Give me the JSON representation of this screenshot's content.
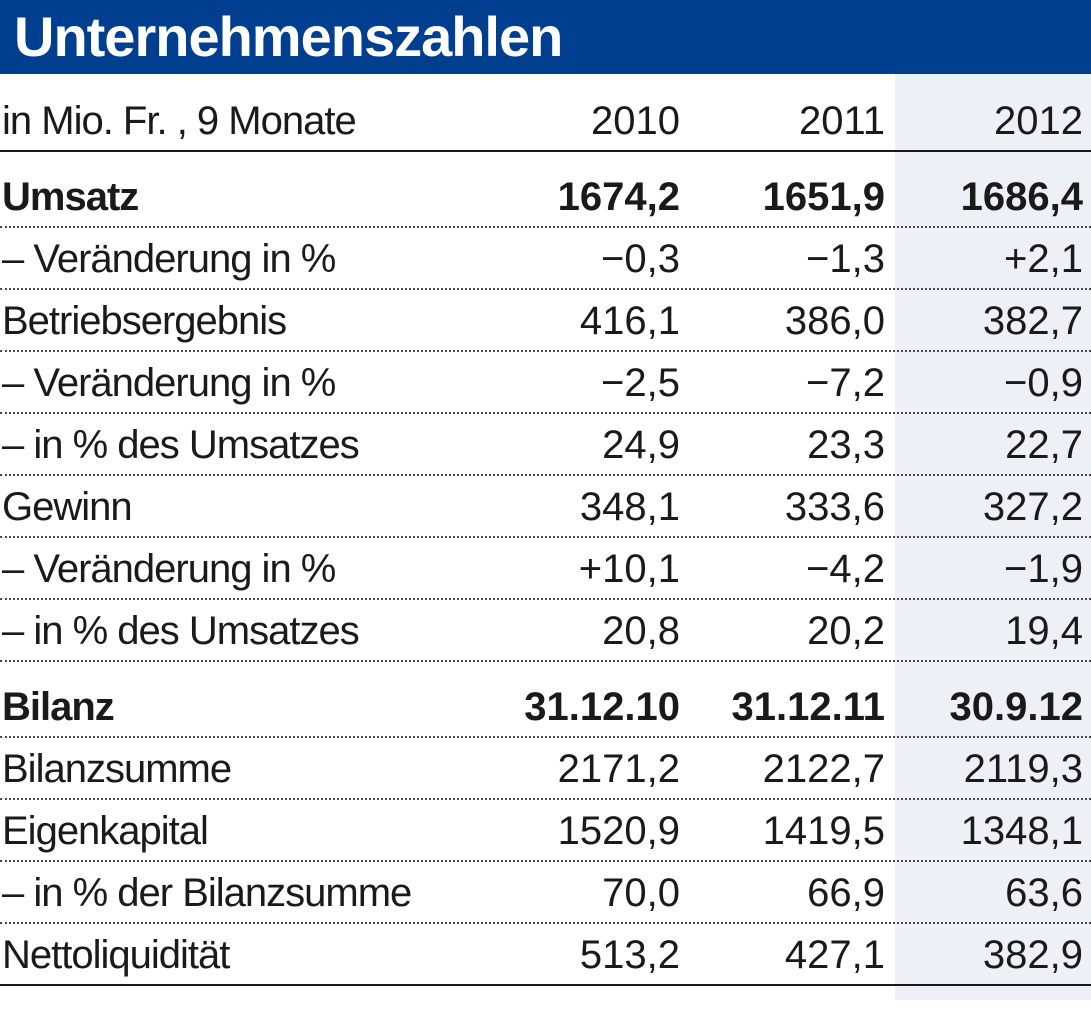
{
  "title": "Unternehmenszahlen",
  "header": {
    "label": "in Mio. Fr. , 9 Monate",
    "years": [
      "2010",
      "2011",
      "2012"
    ]
  },
  "rows": [
    {
      "label": "Umsatz",
      "values": [
        "1674,2",
        "1651,9",
        "1686,4"
      ],
      "bold": true
    },
    {
      "label": "– Veränderung in %",
      "values": [
        "−0,3",
        "−1,3",
        "+2,1"
      ]
    },
    {
      "label": "Betriebsergebnis",
      "values": [
        "416,1",
        "386,0",
        "382,7"
      ]
    },
    {
      "label": "– Veränderung in %",
      "values": [
        "−2,5",
        "−7,2",
        "−0,9"
      ]
    },
    {
      "label": "– in % des Umsatzes",
      "values": [
        "24,9",
        "23,3",
        "22,7"
      ]
    },
    {
      "label": "Gewinn",
      "values": [
        "348,1",
        "333,6",
        "327,2"
      ]
    },
    {
      "label": "– Veränderung in %",
      "values": [
        "+10,1",
        "−4,2",
        "−1,9"
      ]
    },
    {
      "label": "– in % des Umsatzes",
      "values": [
        "20,8",
        "20,2",
        "19,4"
      ]
    },
    {
      "label": "Bilanz",
      "values": [
        "31.12.10",
        "31.12.11",
        "30.9.12"
      ],
      "bold": true
    },
    {
      "label": "Bilanzsumme",
      "values": [
        "2171,2",
        "2122,7",
        "2119,3"
      ]
    },
    {
      "label": "Eigenkapital",
      "values": [
        "1520,9",
        "1419,5",
        "1348,1"
      ]
    },
    {
      "label": "– in % der Bilanzsumme",
      "values": [
        "70,0",
        "66,9",
        "63,6"
      ]
    },
    {
      "label": "Nettoliquidität",
      "values": [
        "513,2",
        "427,1",
        "382,9"
      ]
    }
  ],
  "colors": {
    "title_background": "#003e8f",
    "title_text": "#ffffff",
    "highlight_column": "#edf1f7"
  }
}
